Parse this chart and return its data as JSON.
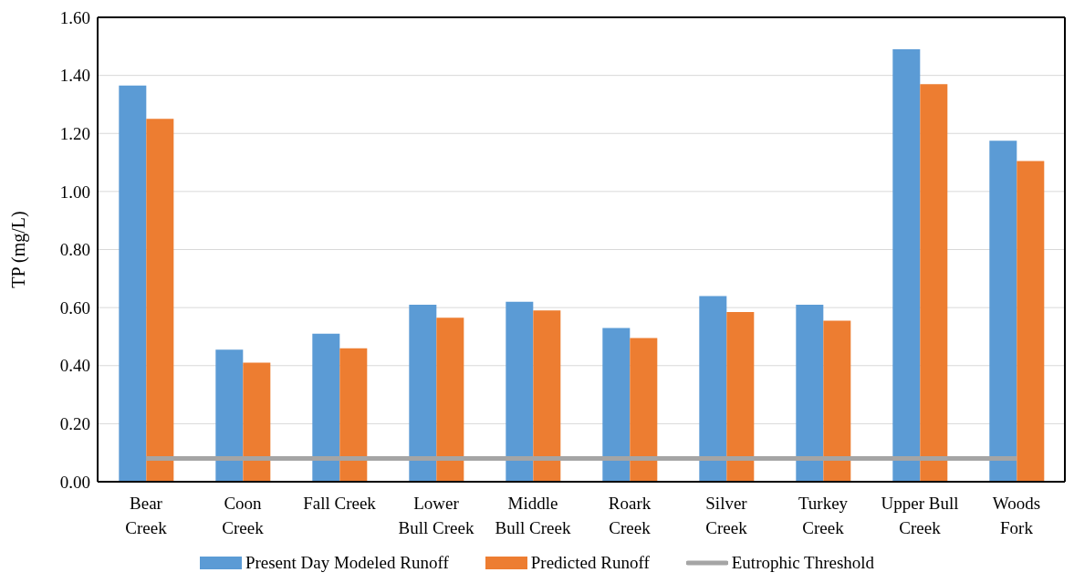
{
  "chart_data": {
    "type": "bar",
    "ylabel": "TP (mg/L)",
    "categories": [
      "Bear\nCreek",
      "Coon\nCreek",
      "Fall Creek",
      "Lower\nBull Creek",
      "Middle\nBull Creek",
      "Roark\nCreek",
      "Silver\nCreek",
      "Turkey\nCreek",
      "Upper Bull\nCreek",
      "Woods\nFork"
    ],
    "series": [
      {
        "name": "Present Day Modeled Runoff",
        "color": "#5b9bd5",
        "values": [
          1.365,
          0.455,
          0.51,
          0.61,
          0.62,
          0.53,
          0.64,
          0.61,
          1.49,
          1.175
        ]
      },
      {
        "name": "Predicted Runoff",
        "color": "#ed7d31",
        "values": [
          1.25,
          0.41,
          0.46,
          0.565,
          0.59,
          0.495,
          0.585,
          0.555,
          1.37,
          1.105
        ]
      },
      {
        "name": "Eutrophic Threshold",
        "type": "line",
        "color": "#a5a5a5",
        "values": [
          0.08,
          0.08,
          0.08,
          0.08,
          0.08,
          0.08,
          0.08,
          0.08,
          0.08,
          0.08
        ]
      }
    ],
    "ylim": [
      0,
      1.6
    ],
    "yticks": [
      {
        "value": 0,
        "label": "0.00"
      },
      {
        "value": 0.2,
        "label": "0.20"
      },
      {
        "value": 0.4,
        "label": "0.40"
      },
      {
        "value": 0.6,
        "label": "0.60"
      },
      {
        "value": 0.8,
        "label": "0.80"
      },
      {
        "value": 1,
        "label": "1.00"
      },
      {
        "value": 1.2,
        "label": "1.20"
      },
      {
        "value": 1.4,
        "label": "1.40"
      },
      {
        "value": 1.6,
        "label": "1.60"
      }
    ],
    "grid": "y",
    "legend": "bottom",
    "marker": "none"
  }
}
